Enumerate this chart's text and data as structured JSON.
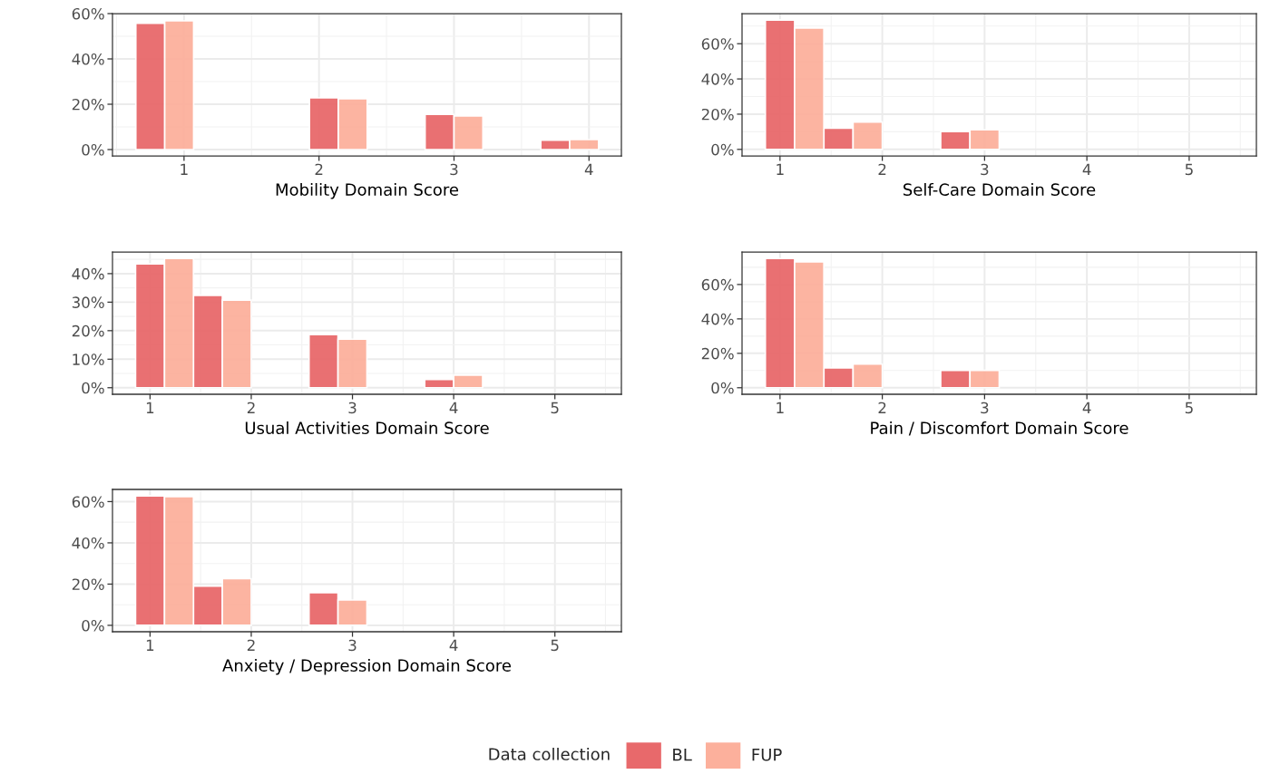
{
  "chart_data": [
    {
      "type": "histogram",
      "xlabel": "Mobility Domain Score",
      "bins": [
        0.643,
        1.071,
        1.5,
        1.929,
        2.357,
        2.786,
        3.214,
        3.643,
        4.071
      ],
      "xlim": [
        0.47,
        4.24
      ],
      "xticks": [
        1,
        2,
        3,
        4
      ],
      "ylim": [
        -2.8,
        60
      ],
      "yticks": [
        {
          "value": 0,
          "label": "0%"
        },
        {
          "value": 20,
          "label": "20%"
        },
        {
          "value": 40,
          "label": "40%"
        },
        {
          "value": 60,
          "label": "60%"
        }
      ],
      "grid": true,
      "legend": "bottom",
      "legend_title": "Data collection",
      "series": [
        {
          "name": "BL",
          "color": "#e8696b",
          "values": [
            55.7,
            null,
            null,
            22.8,
            null,
            15.5,
            null,
            4.1
          ]
        },
        {
          "name": "FUP",
          "color": "#fcb09c",
          "values": [
            56.8,
            null,
            null,
            22.4,
            null,
            14.8,
            null,
            4.4
          ]
        }
      ]
    },
    {
      "type": "histogram",
      "xlabel": "Self-Care Domain Score",
      "bins": [
        0.857,
        1.429,
        2.0,
        2.571,
        3.143,
        3.714,
        4.286,
        4.857,
        5.429
      ],
      "xlim": [
        0.629,
        5.657
      ],
      "xticks": [
        1,
        2,
        3,
        4,
        5
      ],
      "ylim": [
        -3.7,
        77.1
      ],
      "yticks": [
        {
          "value": 0,
          "label": "0%"
        },
        {
          "value": 20,
          "label": "20%"
        },
        {
          "value": 40,
          "label": "40%"
        },
        {
          "value": 60,
          "label": "60%"
        }
      ],
      "grid": true,
      "series": [
        {
          "name": "BL",
          "color": "#e8696b",
          "values": [
            73.4,
            12.0,
            null,
            10.1,
            null,
            null,
            null,
            null
          ]
        },
        {
          "name": "FUP",
          "color": "#fcb09c",
          "values": [
            68.9,
            15.5,
            null,
            11.1,
            null,
            null,
            null,
            null
          ]
        }
      ]
    },
    {
      "type": "histogram",
      "xlabel": "Usual Activities Domain Score",
      "bins": [
        0.857,
        1.429,
        2.0,
        2.571,
        3.143,
        3.714,
        4.286,
        4.857,
        5.429
      ],
      "xlim": [
        0.629,
        5.657
      ],
      "xticks": [
        1,
        2,
        3,
        4,
        5
      ],
      "ylim": [
        -2.3,
        47.6
      ],
      "yticks": [
        {
          "value": 0,
          "label": "0%"
        },
        {
          "value": 10,
          "label": "10%"
        },
        {
          "value": 20,
          "label": "20%"
        },
        {
          "value": 30,
          "label": "30%"
        },
        {
          "value": 40,
          "label": "40%"
        }
      ],
      "grid": true,
      "series": [
        {
          "name": "BL",
          "color": "#e8696b",
          "values": [
            43.4,
            32.4,
            null,
            18.6,
            null,
            2.9,
            null,
            null
          ]
        },
        {
          "name": "FUP",
          "color": "#fcb09c",
          "values": [
            45.3,
            30.7,
            null,
            17.0,
            null,
            4.4,
            null,
            null
          ]
        }
      ]
    },
    {
      "type": "histogram",
      "xlabel": "Pain / Discomfort Domain Score",
      "bins": [
        0.857,
        1.429,
        2.0,
        2.571,
        3.143,
        3.714,
        4.286,
        4.857,
        5.429
      ],
      "xlim": [
        0.629,
        5.657
      ],
      "xticks": [
        1,
        2,
        3,
        4,
        5
      ],
      "ylim": [
        -3.8,
        78.9
      ],
      "yticks": [
        {
          "value": 0,
          "label": "0%"
        },
        {
          "value": 20,
          "label": "20%"
        },
        {
          "value": 40,
          "label": "40%"
        },
        {
          "value": 60,
          "label": "60%"
        }
      ],
      "grid": true,
      "series": [
        {
          "name": "BL",
          "color": "#e8696b",
          "values": [
            75.1,
            11.5,
            null,
            10.1,
            null,
            null,
            null,
            null
          ]
        },
        {
          "name": "FUP",
          "color": "#fcb09c",
          "values": [
            73.2,
            13.7,
            null,
            10.1,
            null,
            null,
            null,
            null
          ]
        }
      ]
    },
    {
      "type": "histogram",
      "xlabel": "Anxiety / Depression Domain Score",
      "bins": [
        0.857,
        1.429,
        2.0,
        2.571,
        3.143,
        3.714,
        4.286,
        4.857,
        5.429
      ],
      "xlim": [
        0.629,
        5.657
      ],
      "xticks": [
        1,
        2,
        3,
        4,
        5
      ],
      "ylim": [
        -3.1,
        65.9
      ],
      "yticks": [
        {
          "value": 0,
          "label": "0%"
        },
        {
          "value": 20,
          "label": "20%"
        },
        {
          "value": 40,
          "label": "40%"
        },
        {
          "value": 60,
          "label": "60%"
        }
      ],
      "grid": true,
      "series": [
        {
          "name": "BL",
          "color": "#e8696b",
          "values": [
            62.8,
            19.0,
            null,
            15.8,
            null,
            null,
            null,
            null
          ]
        },
        {
          "name": "FUP",
          "color": "#fcb09c",
          "values": [
            62.4,
            22.6,
            null,
            12.3,
            null,
            null,
            null,
            null
          ]
        }
      ]
    }
  ]
}
